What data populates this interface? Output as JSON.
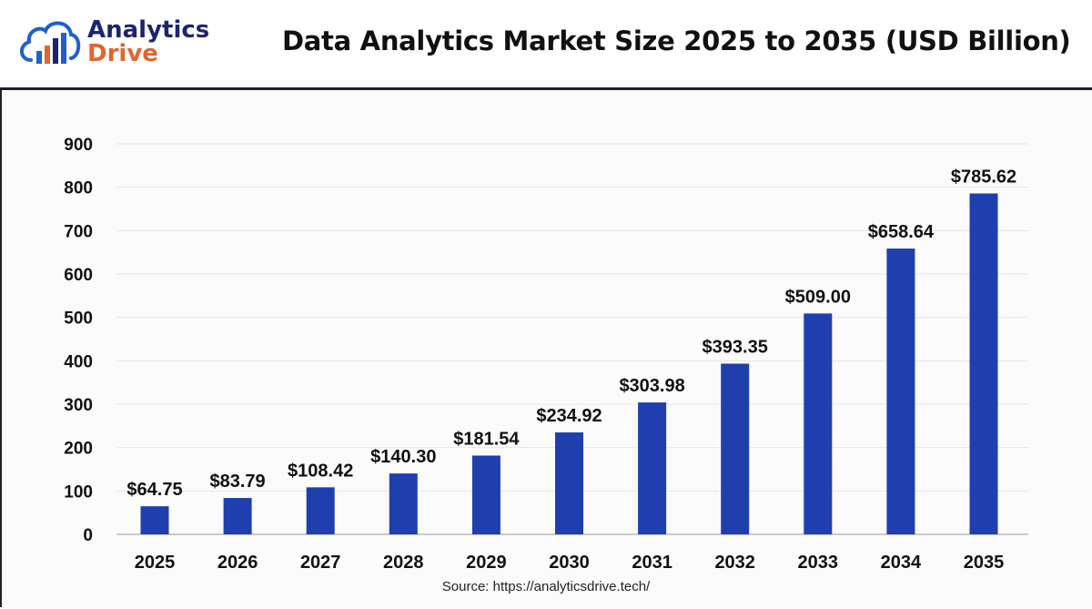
{
  "logo": {
    "line1": "Analytics",
    "line2": "Drive"
  },
  "chart_data": {
    "type": "bar",
    "title": "Data Analytics Market Size 2025 to 2035 (USD Billion)",
    "categories": [
      "2025",
      "2026",
      "2027",
      "2028",
      "2029",
      "2030",
      "2031",
      "2032",
      "2033",
      "2034",
      "2035"
    ],
    "values": [
      64.75,
      83.79,
      108.42,
      140.3,
      181.54,
      234.92,
      303.98,
      393.35,
      509.0,
      658.64,
      785.62
    ],
    "data_labels": [
      "$64.75",
      "$83.79",
      "$108.42",
      "$140.30",
      "$181.54",
      "$234.92",
      "$303.98",
      "$393.35",
      "$509.00",
      "$658.64",
      "$785.62"
    ],
    "yticks": [
      0,
      100,
      200,
      300,
      400,
      500,
      600,
      700,
      800,
      900
    ],
    "ylim": [
      0,
      900
    ],
    "grid": true,
    "bar_color": "#1f3fae",
    "source": "Source: https://analyticsdrive.tech/"
  }
}
